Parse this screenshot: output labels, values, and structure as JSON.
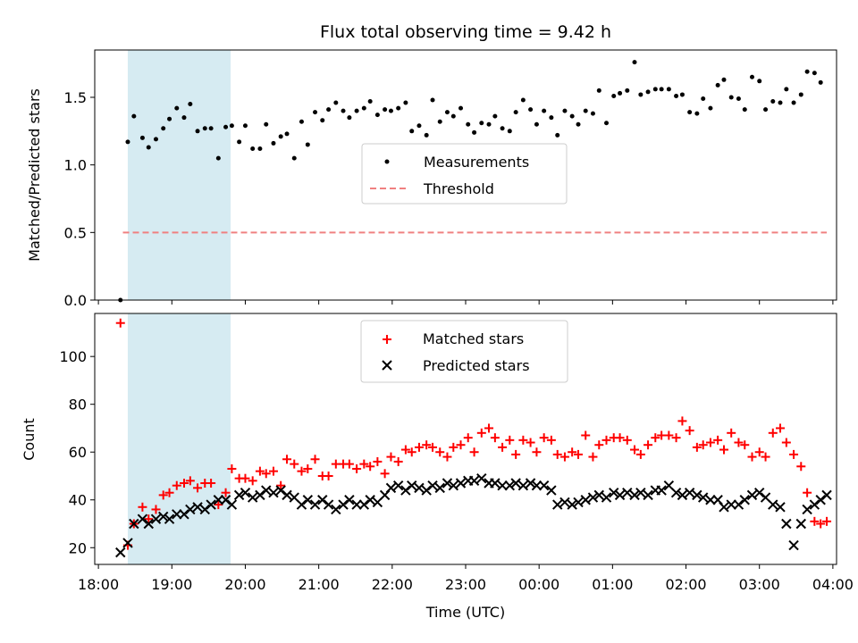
{
  "chart_data": [
    {
      "type": "scatter",
      "panel": "top",
      "title": "Flux total observing time = 9.42 h",
      "xlabel": "",
      "ylabel": "Matched/Predicted stars",
      "xlim": [
        "18:00",
        "04:00"
      ],
      "ylim": [
        0,
        1.85
      ],
      "yticks": [
        "0.0",
        "0.5",
        "1.0",
        "1.5"
      ],
      "shaded_span": [
        "18:24",
        "19:48"
      ],
      "threshold": {
        "value": 0.5,
        "x_start": "18:20",
        "x_end": "03:55",
        "color": "#f08080"
      },
      "legend": {
        "placement": "center",
        "entries": [
          "Measurements",
          "Threshold"
        ]
      },
      "series": [
        {
          "name": "Measurements",
          "marker": "dot",
          "color": "#000000",
          "x": [
            "18:18",
            "18:24",
            "18:29",
            "18:36",
            "18:41",
            "18:47",
            "18:53",
            "18:58",
            "19:04",
            "19:10",
            "19:15",
            "19:21",
            "19:27",
            "19:32",
            "19:38",
            "19:44",
            "19:49",
            "19:55",
            "20:00",
            "20:06",
            "20:12",
            "20:17",
            "20:23",
            "20:29",
            "20:34",
            "20:40",
            "20:46",
            "20:51",
            "20:57",
            "21:03",
            "21:08",
            "21:14",
            "21:20",
            "21:25",
            "21:31",
            "21:37",
            "21:42",
            "21:48",
            "21:54",
            "21:59",
            "22:05",
            "22:11",
            "22:16",
            "22:22",
            "22:28",
            "22:33",
            "22:39",
            "22:45",
            "22:50",
            "22:56",
            "23:02",
            "23:07",
            "23:13",
            "23:19",
            "23:24",
            "23:30",
            "23:36",
            "23:41",
            "23:47",
            "23:53",
            "23:58",
            "00:04",
            "00:10",
            "00:15",
            "00:21",
            "00:27",
            "00:32",
            "00:38",
            "00:44",
            "00:49",
            "00:55",
            "01:01",
            "01:06",
            "01:12",
            "01:18",
            "01:23",
            "01:29",
            "01:35",
            "01:40",
            "01:46",
            "01:52",
            "01:57",
            "02:03",
            "02:09",
            "02:14",
            "02:20",
            "02:26",
            "02:31",
            "02:37",
            "02:43",
            "02:48",
            "02:54",
            "03:00",
            "03:05",
            "03:11",
            "03:17",
            "03:22",
            "03:28",
            "03:34",
            "03:39",
            "03:45",
            "03:50"
          ],
          "values": [
            0.0,
            1.17,
            1.36,
            1.2,
            1.13,
            1.19,
            1.27,
            1.34,
            1.42,
            1.35,
            1.45,
            1.25,
            1.27,
            1.27,
            1.05,
            1.28,
            1.29,
            1.17,
            1.29,
            1.12,
            1.12,
            1.3,
            1.16,
            1.21,
            1.23,
            1.05,
            1.32,
            1.15,
            1.39,
            1.33,
            1.41,
            1.46,
            1.4,
            1.35,
            1.4,
            1.42,
            1.47,
            1.37,
            1.41,
            1.4,
            1.42,
            1.46,
            1.25,
            1.29,
            1.22,
            1.48,
            1.32,
            1.39,
            1.36,
            1.42,
            1.3,
            1.24,
            1.31,
            1.3,
            1.36,
            1.27,
            1.25,
            1.39,
            1.48,
            1.41,
            1.3,
            1.4,
            1.35,
            1.22,
            1.4,
            1.36,
            1.3,
            1.4,
            1.38,
            1.55,
            1.31,
            1.51,
            1.53,
            1.55,
            1.76,
            1.52,
            1.54,
            1.56,
            1.56,
            1.56,
            1.51,
            1.52,
            1.39,
            1.38,
            1.49,
            1.42,
            1.59,
            1.63,
            1.5,
            1.49,
            1.41,
            1.65,
            1.62,
            1.41,
            1.47,
            1.46,
            1.56,
            1.46,
            1.52,
            1.69,
            1.68,
            1.61
          ]
        }
      ]
    },
    {
      "type": "scatter",
      "panel": "bottom",
      "title": "",
      "xlabel": "Time (UTC)",
      "ylabel": "Count",
      "xlim": [
        "18:00",
        "04:00"
      ],
      "ylim": [
        13,
        118
      ],
      "yticks": [
        "20",
        "40",
        "60",
        "80",
        "100"
      ],
      "xticks": [
        "18:00",
        "19:00",
        "20:00",
        "21:00",
        "22:00",
        "23:00",
        "00:00",
        "01:00",
        "02:00",
        "03:00",
        "04:00"
      ],
      "shaded_span": [
        "18:24",
        "19:48"
      ],
      "legend": {
        "placement": "upper center",
        "entries": [
          "Matched stars",
          "Predicted stars"
        ]
      },
      "series": [
        {
          "name": "Matched stars",
          "marker": "plus",
          "color": "#ff0000",
          "x": [
            "18:18",
            "18:24",
            "18:29",
            "18:36",
            "18:41",
            "18:47",
            "18:53",
            "18:58",
            "19:04",
            "19:10",
            "19:15",
            "19:21",
            "19:27",
            "19:32",
            "19:38",
            "19:44",
            "19:49",
            "19:55",
            "20:00",
            "20:06",
            "20:12",
            "20:17",
            "20:23",
            "20:29",
            "20:34",
            "20:40",
            "20:46",
            "20:51",
            "20:57",
            "21:03",
            "21:08",
            "21:14",
            "21:20",
            "21:25",
            "21:31",
            "21:37",
            "21:42",
            "21:48",
            "21:54",
            "21:59",
            "22:05",
            "22:11",
            "22:16",
            "22:22",
            "22:28",
            "22:33",
            "22:39",
            "22:45",
            "22:50",
            "22:56",
            "23:02",
            "23:07",
            "23:13",
            "23:19",
            "23:24",
            "23:30",
            "23:36",
            "23:41",
            "23:47",
            "23:53",
            "23:58",
            "00:04",
            "00:10",
            "00:15",
            "00:21",
            "00:27",
            "00:32",
            "00:38",
            "00:44",
            "00:49",
            "00:55",
            "01:01",
            "01:06",
            "01:12",
            "01:18",
            "01:23",
            "01:29",
            "01:35",
            "01:40",
            "01:46",
            "01:52",
            "01:57",
            "02:03",
            "02:09",
            "02:14",
            "02:20",
            "02:26",
            "02:31",
            "02:37",
            "02:43",
            "02:48",
            "02:54",
            "03:00",
            "03:05",
            "03:11",
            "03:17",
            "03:22",
            "03:28",
            "03:34",
            "03:39",
            "03:45",
            "03:50",
            "03:55"
          ],
          "values": [
            114,
            21,
            30,
            37,
            32,
            36,
            42,
            43,
            46,
            47,
            48,
            45,
            47,
            47,
            38,
            43,
            53,
            49,
            49,
            48,
            52,
            51,
            52,
            46,
            57,
            55,
            52,
            53,
            57,
            50,
            50,
            55,
            55,
            55,
            53,
            55,
            54,
            56,
            51,
            58,
            56,
            61,
            60,
            62,
            63,
            62,
            60,
            58,
            62,
            63,
            66,
            60,
            68,
            70,
            66,
            62,
            65,
            59,
            65,
            64,
            60,
            66,
            65,
            59,
            58,
            60,
            59,
            67,
            58,
            63,
            65,
            66,
            66,
            65,
            61,
            59,
            63,
            66,
            67,
            67,
            66,
            73,
            69,
            62,
            63,
            64,
            65,
            61,
            68,
            64,
            63,
            58,
            60,
            58,
            68,
            70,
            64,
            59,
            54,
            43,
            31,
            30,
            31
          ]
        },
        {
          "name": "Predicted stars",
          "marker": "x",
          "color": "#000000",
          "x": [
            "18:18",
            "18:24",
            "18:29",
            "18:36",
            "18:41",
            "18:47",
            "18:53",
            "18:58",
            "19:04",
            "19:10",
            "19:15",
            "19:21",
            "19:27",
            "19:32",
            "19:38",
            "19:44",
            "19:49",
            "19:55",
            "20:00",
            "20:06",
            "20:12",
            "20:17",
            "20:23",
            "20:29",
            "20:34",
            "20:40",
            "20:46",
            "20:51",
            "20:57",
            "21:03",
            "21:08",
            "21:14",
            "21:20",
            "21:25",
            "21:31",
            "21:37",
            "21:42",
            "21:48",
            "21:54",
            "21:59",
            "22:05",
            "22:11",
            "22:16",
            "22:22",
            "22:28",
            "22:33",
            "22:39",
            "22:45",
            "22:50",
            "22:56",
            "23:02",
            "23:07",
            "23:13",
            "23:19",
            "23:24",
            "23:30",
            "23:36",
            "23:41",
            "23:47",
            "23:53",
            "23:58",
            "00:04",
            "00:10",
            "00:15",
            "00:21",
            "00:27",
            "00:32",
            "00:38",
            "00:44",
            "00:49",
            "00:55",
            "01:01",
            "01:06",
            "01:12",
            "01:18",
            "01:23",
            "01:29",
            "01:35",
            "01:40",
            "01:46",
            "01:52",
            "01:57",
            "02:03",
            "02:09",
            "02:14",
            "02:20",
            "02:26",
            "02:31",
            "02:37",
            "02:43",
            "02:48",
            "02:54",
            "03:00",
            "03:05",
            "03:11",
            "03:17",
            "03:22",
            "03:28",
            "03:34",
            "03:39",
            "03:45",
            "03:50",
            "03:55"
          ],
          "values": [
            18,
            22,
            30,
            32,
            30,
            32,
            33,
            32,
            34,
            34,
            36,
            37,
            36,
            38,
            40,
            40,
            38,
            42,
            43,
            41,
            42,
            44,
            43,
            44,
            42,
            41,
            38,
            40,
            38,
            40,
            38,
            36,
            38,
            40,
            38,
            38,
            40,
            39,
            42,
            45,
            46,
            44,
            46,
            45,
            44,
            46,
            45,
            47,
            46,
            47,
            48,
            48,
            49,
            47,
            47,
            46,
            46,
            47,
            46,
            47,
            46,
            46,
            44,
            38,
            39,
            38,
            39,
            40,
            41,
            42,
            41,
            43,
            42,
            43,
            42,
            43,
            42,
            44,
            44,
            46,
            43,
            42,
            43,
            42,
            41,
            40,
            40,
            37,
            38,
            38,
            40,
            42,
            43,
            41,
            38,
            37,
            30,
            21,
            30,
            36,
            38,
            40,
            42
          ]
        }
      ]
    }
  ]
}
